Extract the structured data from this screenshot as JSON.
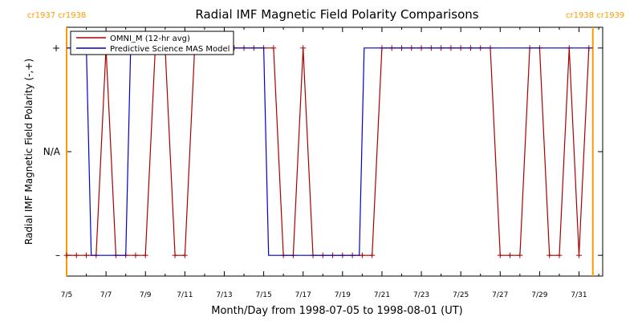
{
  "chart_data": {
    "type": "line",
    "title": "Radial IMF Magnetic Field Polarity Comparisons",
    "xlabel": "Month/Day from 1998-07-05 to 1998-08-01 (UT)",
    "ylabel": "Radial IMF Magnetic Field Polarity (-,+)",
    "xlim": [
      0,
      27.2
    ],
    "ylim": [
      -1.2,
      1.2
    ],
    "x_ticks": [
      {
        "value": 0,
        "label": "7/5"
      },
      {
        "value": 2,
        "label": "7/7"
      },
      {
        "value": 4,
        "label": "7/9"
      },
      {
        "value": 6,
        "label": "7/11"
      },
      {
        "value": 8,
        "label": "7/13"
      },
      {
        "value": 10,
        "label": "7/15"
      },
      {
        "value": 12,
        "label": "7/17"
      },
      {
        "value": 14,
        "label": "7/19"
      },
      {
        "value": 16,
        "label": "7/21"
      },
      {
        "value": 18,
        "label": "7/23"
      },
      {
        "value": 20,
        "label": "7/25"
      },
      {
        "value": 22,
        "label": "7/27"
      },
      {
        "value": 24,
        "label": "7/29"
      },
      {
        "value": 26,
        "label": "7/31"
      }
    ],
    "y_ticks": [
      {
        "value": 1,
        "label": "+"
      },
      {
        "value": 0,
        "label": "N/A"
      },
      {
        "value": -1,
        "label": "–"
      }
    ],
    "carrington": [
      {
        "x": 0,
        "label": "cr1937 cr1938",
        "side": "left"
      },
      {
        "x": 26.7,
        "label": "cr1938 cr1939",
        "side": "right"
      }
    ],
    "legend": {
      "position": "top-left",
      "entries": [
        {
          "label": "OMNI_M (12-hr avg)",
          "color": "#aa0000"
        },
        {
          "label": "Predictive Science MAS Model",
          "color": "#0000cc"
        }
      ]
    },
    "series": [
      {
        "name": "OMNI_M (12-hr avg)",
        "color": "#aa0000",
        "markers": true,
        "points": [
          [
            0,
            -1
          ],
          [
            0.5,
            -1
          ],
          [
            1,
            -1
          ],
          [
            1.5,
            -1
          ],
          [
            2,
            1
          ],
          [
            2.5,
            -1
          ],
          [
            3,
            -1
          ],
          [
            3.5,
            -1
          ],
          [
            4,
            -1
          ],
          [
            4.5,
            1
          ],
          [
            5,
            1
          ],
          [
            5.5,
            -1
          ],
          [
            6,
            -1
          ],
          [
            6.5,
            1
          ],
          [
            7,
            1
          ],
          [
            7.5,
            1
          ],
          [
            8,
            1
          ],
          [
            8.5,
            1
          ],
          [
            9,
            1
          ],
          [
            9.5,
            1
          ],
          [
            10,
            1
          ],
          [
            10.5,
            1
          ],
          [
            11,
            -1
          ],
          [
            11.5,
            -1
          ],
          [
            12,
            1
          ],
          [
            12.5,
            -1
          ],
          [
            13,
            -1
          ],
          [
            13.5,
            -1
          ],
          [
            14,
            -1
          ],
          [
            14.5,
            -1
          ],
          [
            15,
            -1
          ],
          [
            15.5,
            -1
          ],
          [
            16,
            1
          ],
          [
            16.5,
            1
          ],
          [
            17,
            1
          ],
          [
            17.5,
            1
          ],
          [
            18,
            1
          ],
          [
            18.5,
            1
          ],
          [
            19,
            1
          ],
          [
            19.5,
            1
          ],
          [
            20,
            1
          ],
          [
            20.5,
            1
          ],
          [
            21,
            1
          ],
          [
            21.5,
            1
          ],
          [
            22,
            -1
          ],
          [
            22.5,
            -1
          ],
          [
            23,
            -1
          ],
          [
            23.5,
            1
          ],
          [
            24,
            1
          ],
          [
            24.5,
            -1
          ],
          [
            25,
            -1
          ],
          [
            25.5,
            1
          ],
          [
            26,
            -1
          ],
          [
            26.5,
            1
          ]
        ]
      },
      {
        "name": "Predictive Science MAS Model",
        "color": "#0000cc",
        "markers": false,
        "points": [
          [
            0,
            1
          ],
          [
            1,
            1
          ],
          [
            1.25,
            -1
          ],
          [
            3,
            -1
          ],
          [
            3.25,
            1
          ],
          [
            10,
            1
          ],
          [
            10.25,
            -1
          ],
          [
            14.85,
            -1
          ],
          [
            15.1,
            1
          ],
          [
            26.7,
            1
          ]
        ]
      }
    ],
    "grid": false
  }
}
